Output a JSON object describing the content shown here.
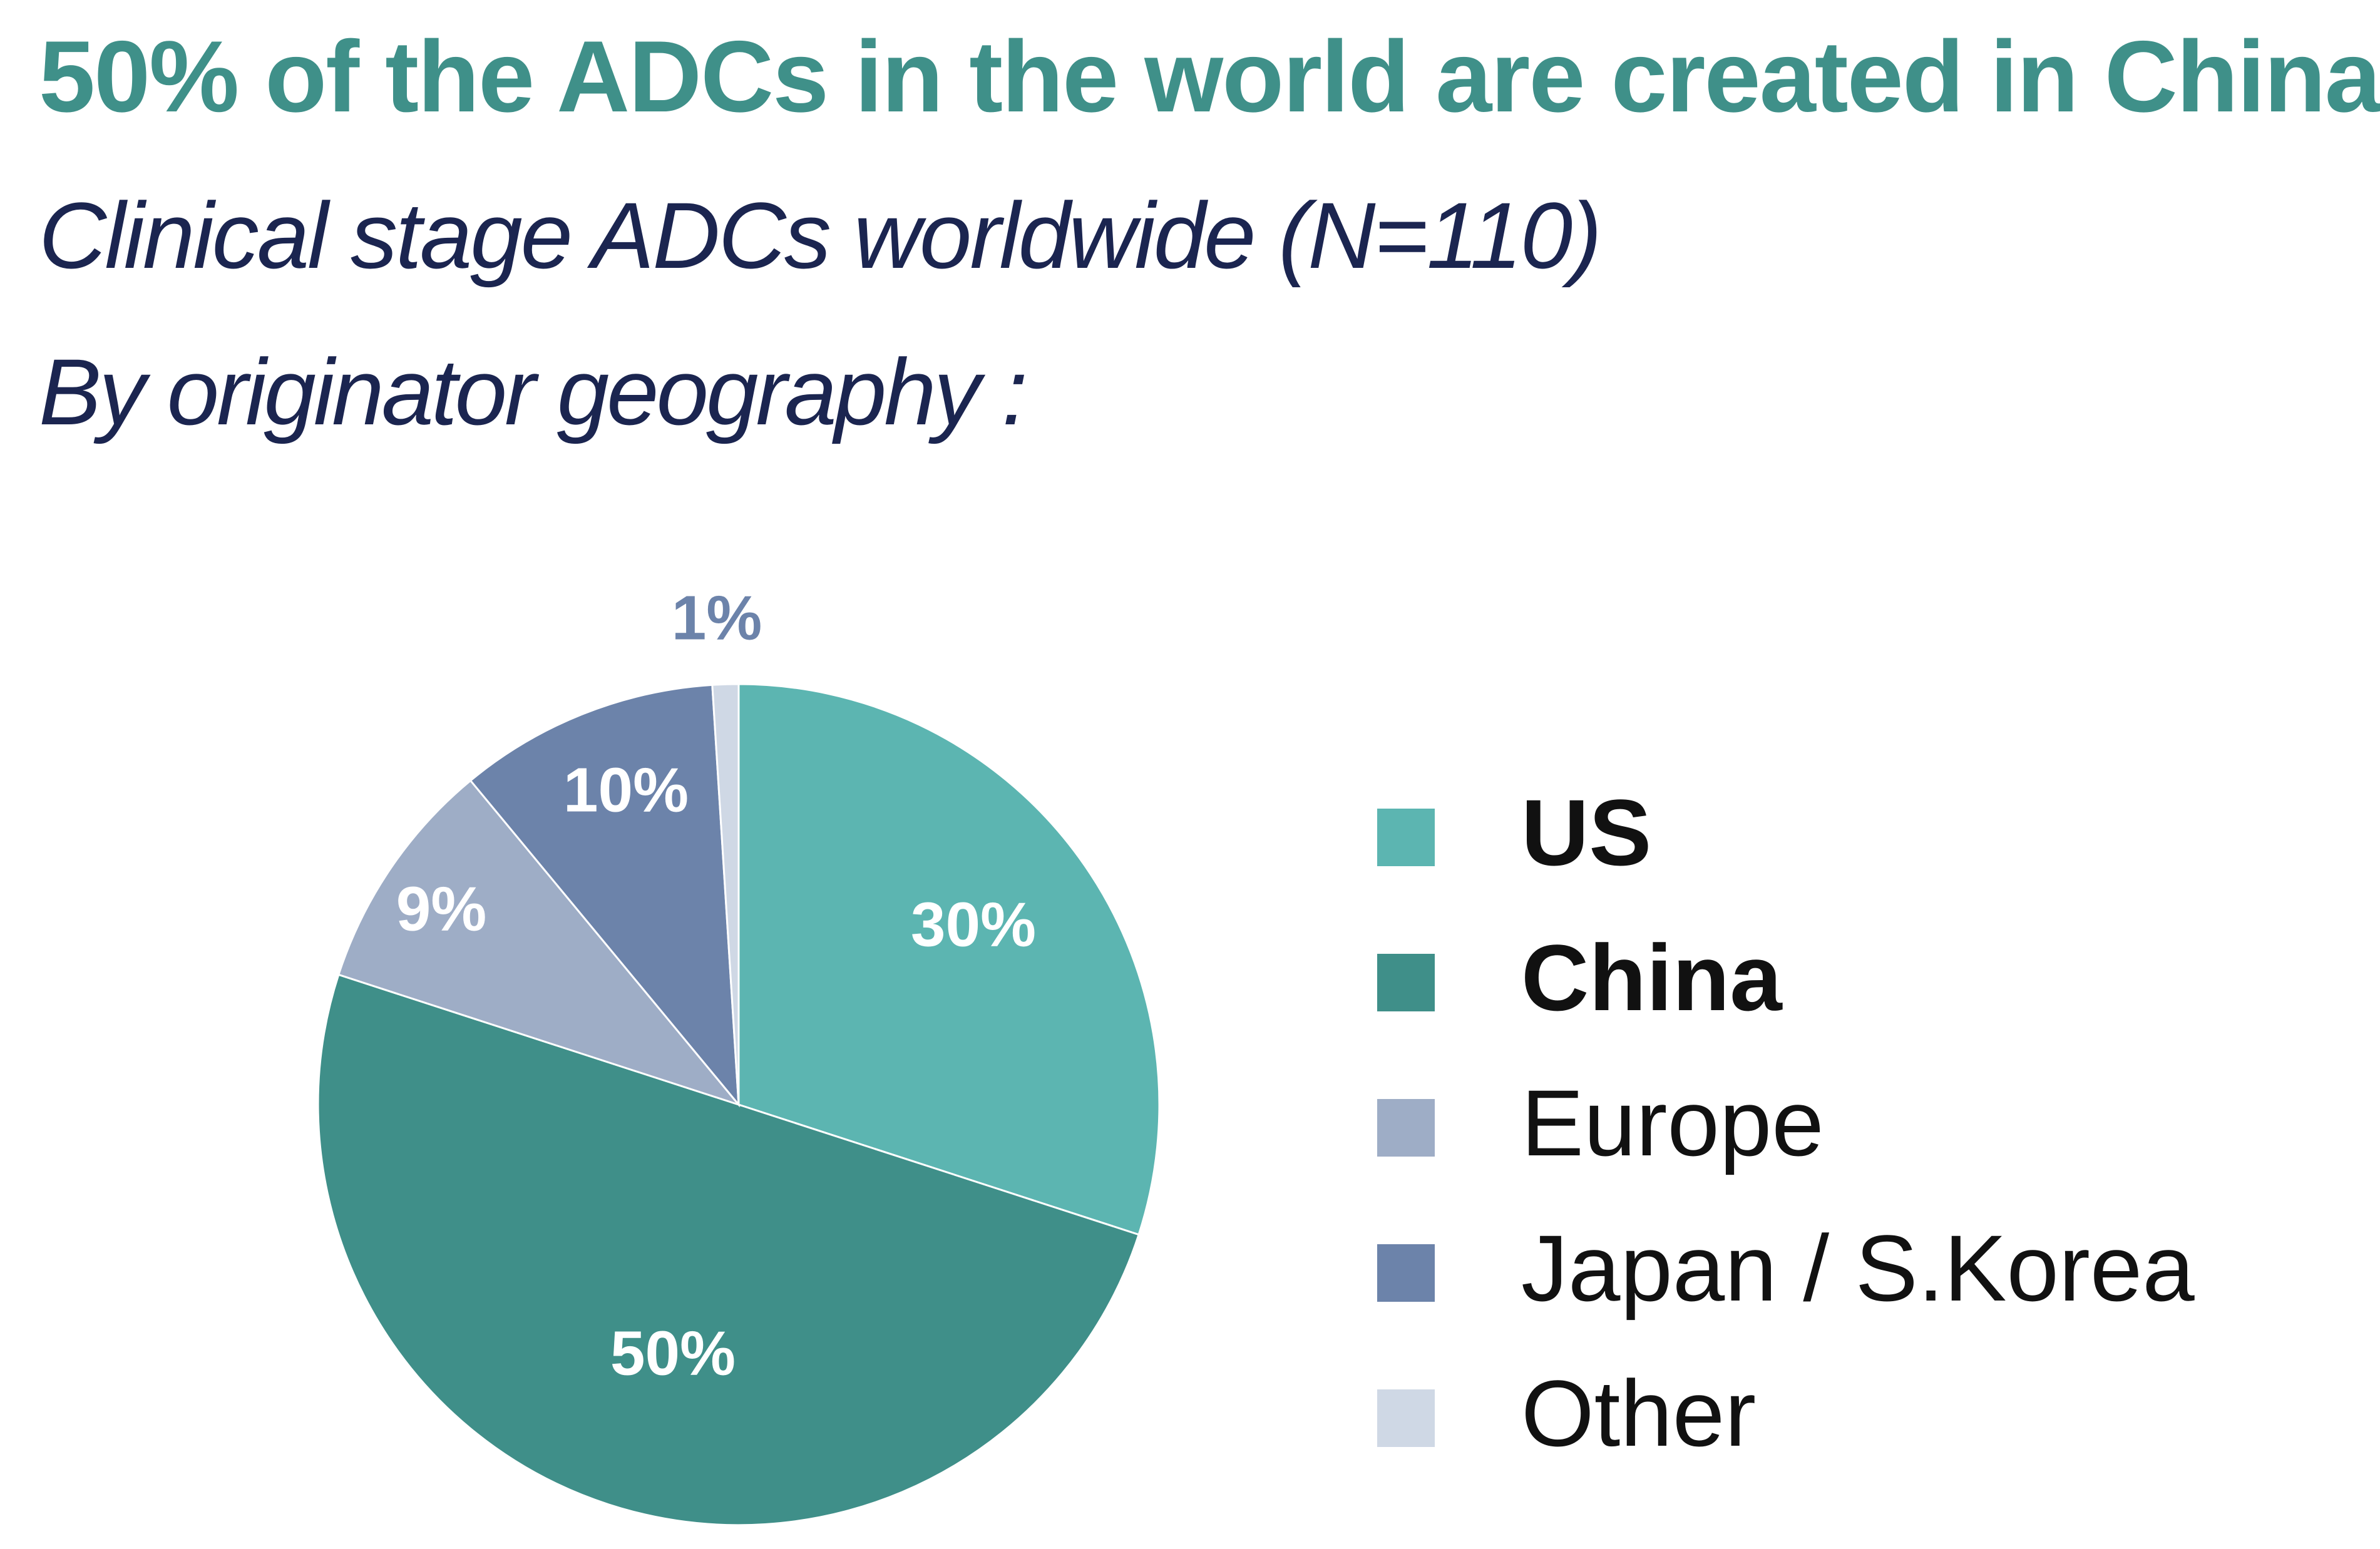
{
  "chart_data": {
    "type": "pie",
    "title": "50% of the ADCs in the world are created in China",
    "subtitle": "Clinical stage ADCs worldwide (N=110)",
    "subtitle2": "By originator geography :",
    "slices": [
      {
        "name": "US",
        "value": 30,
        "label": "30%",
        "color": "#5cb5b1",
        "legend_bold": true
      },
      {
        "name": "China",
        "value": 50,
        "label": "50%",
        "color": "#3f8f89",
        "legend_bold": true
      },
      {
        "name": "Europe",
        "value": 9,
        "label": "9%",
        "color": "#9eadc6",
        "legend_bold": false
      },
      {
        "name": "Japan / S.Korea",
        "value": 10,
        "label": "10%",
        "color": "#6c83aa",
        "legend_bold": false
      },
      {
        "name": "Other",
        "value": 1,
        "label": "1%",
        "color": "#cfd8e5",
        "legend_bold": false
      }
    ],
    "legend_position": "right"
  }
}
